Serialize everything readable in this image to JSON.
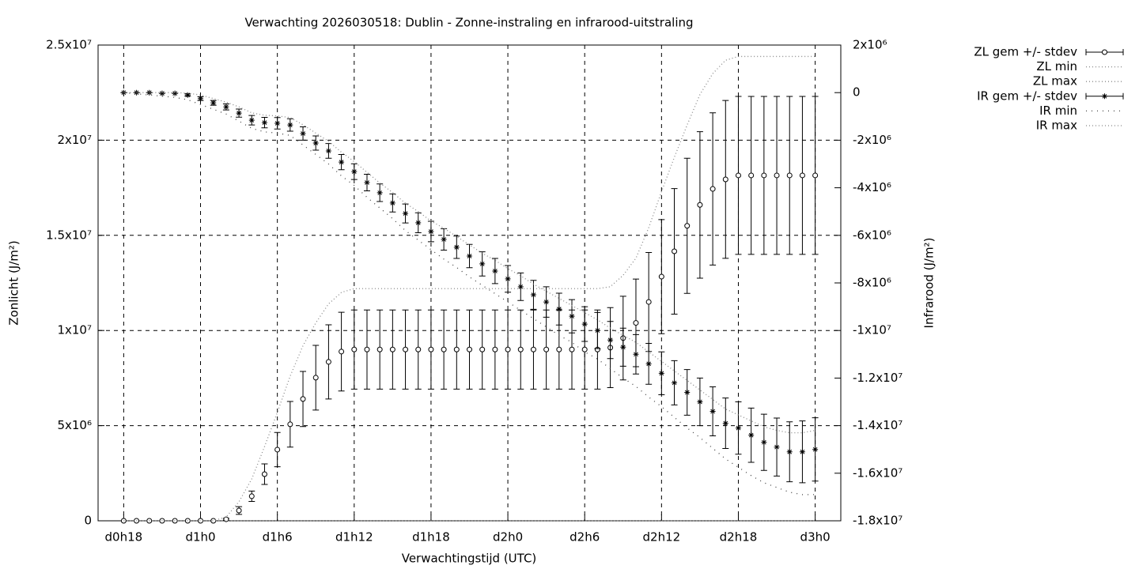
{
  "chart_data": {
    "type": "line",
    "title": "Verwachting 2026030518: Dublin - Zonne-instraling en infrarood-uitstraling",
    "xlabel": "Verwachtingstijd (UTC)",
    "ylabel": "Zonlicht (J/m²)",
    "y2label": "Infrarood (J/m²)",
    "grid": true,
    "legend": "outside-top-right",
    "xlim": [
      -2,
      56
    ],
    "xticks": [
      {
        "value": 0,
        "label": "d0h18"
      },
      {
        "value": 6,
        "label": "d1h0"
      },
      {
        "value": 12,
        "label": "d1h6"
      },
      {
        "value": 18,
        "label": "d1h12"
      },
      {
        "value": 24,
        "label": "d1h18"
      },
      {
        "value": 30,
        "label": "d2h0"
      },
      {
        "value": 36,
        "label": "d2h6"
      },
      {
        "value": 42,
        "label": "d2h12"
      },
      {
        "value": 48,
        "label": "d2h18"
      },
      {
        "value": 54,
        "label": "d3h0"
      }
    ],
    "ylim": [
      0,
      25000000.0
    ],
    "yticks": [
      0,
      {
        "value": 5000000.0,
        "label": "5x10⁶"
      },
      {
        "value": 10000000.0,
        "label": "1x10⁷"
      },
      {
        "value": 15000000.0,
        "label": "1.5x10⁷"
      },
      {
        "value": 20000000.0,
        "label": "2x10⁷"
      },
      {
        "value": 25000000.0,
        "label": "2.5x10⁷"
      }
    ],
    "y2lim": [
      -18000000.0,
      2000000.0
    ],
    "y2ticks": [
      {
        "value": 2000000.0,
        "label": "2x10⁶"
      },
      0,
      {
        "value": -2000000.0,
        "label": "-2x10⁶"
      },
      {
        "value": -4000000.0,
        "label": "-4x10⁶"
      },
      {
        "value": -6000000.0,
        "label": "-6x10⁶"
      },
      {
        "value": -8000000.0,
        "label": "-8x10⁶"
      },
      {
        "value": -10000000.0,
        "label": "-1x10⁷"
      },
      {
        "value": -12000000.0,
        "label": "-1.2x10⁷"
      },
      {
        "value": -14000000.0,
        "label": "-1.4x10⁷"
      },
      {
        "value": -16000000.0,
        "label": "-1.6x10⁷"
      },
      {
        "value": -18000000.0,
        "label": "-1.8x10⁷"
      }
    ],
    "x": [
      0,
      1,
      2,
      3,
      4,
      5,
      6,
      7,
      8,
      9,
      10,
      11,
      12,
      13,
      14,
      15,
      16,
      17,
      18,
      19,
      20,
      21,
      22,
      23,
      24,
      25,
      26,
      27,
      28,
      29,
      30,
      31,
      32,
      33,
      34,
      35,
      36,
      37,
      38,
      39,
      40,
      41,
      42,
      43,
      44,
      45,
      46,
      47,
      48,
      49,
      50,
      51,
      52,
      53,
      54
    ],
    "series": [
      {
        "name": "ZL gem +/- stdev",
        "axis": "y",
        "style": "errorbars",
        "marker": "circle",
        "color": "#000000",
        "values": [
          0,
          0,
          0,
          0,
          0,
          0,
          0,
          0,
          80000.0,
          540000.0,
          1290000.0,
          2450000.0,
          3740000.0,
          5070000.0,
          6400000.0,
          7520000.0,
          8350000.0,
          8890000.0,
          9000000.0,
          9000000.0,
          9000000.0,
          9000000.0,
          9000000.0,
          9000000.0,
          9000000.0,
          9000000.0,
          9000000.0,
          9000000.0,
          9000000.0,
          9000000.0,
          9000000.0,
          9000000.0,
          9000000.0,
          9000000.0,
          9000000.0,
          9000000.0,
          9000000.0,
          9000000.0,
          9100000.0,
          9600000.0,
          10400000.0,
          11500000.0,
          12830000.0,
          14160000.0,
          15500000.0,
          16600000.0,
          17440000.0,
          17940000.0,
          18150000.0,
          18150000.0,
          18150000.0,
          18150000.0,
          18150000.0,
          18150000.0,
          18150000.0
        ],
        "errors": [
          0,
          0,
          0,
          0,
          0,
          0,
          0,
          0,
          50000.0,
          200000.0,
          270000.0,
          540000.0,
          900000.0,
          1200000.0,
          1450000.0,
          1700000.0,
          1950000.0,
          2070000.0,
          2080000.0,
          2080000.0,
          2080000.0,
          2080000.0,
          2080000.0,
          2080000.0,
          2080000.0,
          2080000.0,
          2080000.0,
          2080000.0,
          2080000.0,
          2080000.0,
          2080000.0,
          2080000.0,
          2080000.0,
          2080000.0,
          2080000.0,
          2080000.0,
          2080000.0,
          2080000.0,
          2100000.0,
          2200000.0,
          2300000.0,
          2600000.0,
          3000000.0,
          3300000.0,
          3550000.0,
          3850000.0,
          4000000.0,
          4150000.0,
          4150000.0,
          4150000.0,
          4150000.0,
          4150000.0,
          4150000.0,
          4150000.0,
          4150000.0
        ]
      },
      {
        "name": "ZL min",
        "axis": "y",
        "style": "lines",
        "dash": "1,3",
        "color": "#888888",
        "values": [
          0,
          0,
          0,
          0,
          0,
          0,
          0,
          0,
          0,
          0,
          0,
          0,
          0,
          0,
          0,
          0,
          0,
          0,
          0,
          0,
          0,
          0,
          0,
          0,
          0,
          0,
          0,
          0,
          0,
          0,
          0,
          0,
          0,
          0,
          0,
          0,
          0,
          0,
          0,
          0,
          0,
          0,
          0,
          0,
          0,
          0,
          0,
          0,
          0,
          0,
          0,
          0,
          0,
          0,
          0
        ]
      },
      {
        "name": "ZL max",
        "axis": "y",
        "style": "lines",
        "dash": "1,3",
        "color": "#888888",
        "values": [
          0,
          0,
          0,
          0,
          0,
          0,
          0,
          0,
          200000.0,
          1000000.0,
          2200000.0,
          3900000.0,
          5700000.0,
          7600000.0,
          9200000.0,
          10400000.0,
          11400000.0,
          12000000.0,
          12200000.0,
          12200000.0,
          12200000.0,
          12200000.0,
          12200000.0,
          12200000.0,
          12200000.0,
          12200000.0,
          12200000.0,
          12200000.0,
          12200000.0,
          12200000.0,
          12200000.0,
          12200000.0,
          12200000.0,
          12200000.0,
          12200000.0,
          12200000.0,
          12200000.0,
          12200000.0,
          12300000.0,
          12900000.0,
          13800000.0,
          15400000.0,
          17300000.0,
          19100000.0,
          20800000.0,
          22400000.0,
          23500000.0,
          24200000.0,
          24400000.0,
          24400000.0,
          24400000.0,
          24400000.0,
          24400000.0,
          24400000.0,
          24400000.0
        ]
      },
      {
        "name": "IR gem +/- stdev",
        "axis": "y2",
        "style": "errorbars",
        "marker": "star",
        "color": "#000000",
        "values": [
          0,
          0,
          0,
          -30000.0,
          -30000.0,
          -100000.0,
          -250000.0,
          -430000.0,
          -600000.0,
          -860000.0,
          -1160000.0,
          -1260000.0,
          -1290000.0,
          -1360000.0,
          -1720000.0,
          -2120000.0,
          -2450000.0,
          -2920000.0,
          -3320000.0,
          -3780000.0,
          -4210000.0,
          -4640000.0,
          -5080000.0,
          -5470000.0,
          -5840000.0,
          -6170000.0,
          -6500000.0,
          -6870000.0,
          -7200000.0,
          -7500000.0,
          -7830000.0,
          -8160000.0,
          -8500000.0,
          -8800000.0,
          -9100000.0,
          -9400000.0,
          -9730000.0,
          -10000000.0,
          -10400000.0,
          -10700000.0,
          -11000000.0,
          -11400000.0,
          -11800000.0,
          -12200000.0,
          -12600000.0,
          -13000000.0,
          -13400000.0,
          -13900000.0,
          -14100000.0,
          -14400000.0,
          -14700000.0,
          -14900000.0,
          -15100000.0,
          -15100000.0,
          -15000000.0
        ],
        "errors": [
          0,
          0,
          0,
          0,
          0,
          50000.0,
          80000.0,
          100000.0,
          130000.0,
          170000.0,
          200000.0,
          220000.0,
          240000.0,
          260000.0,
          280000.0,
          300000.0,
          310000.0,
          320000.0,
          330000.0,
          350000.0,
          370000.0,
          380000.0,
          400000.0,
          420000.0,
          430000.0,
          450000.0,
          470000.0,
          490000.0,
          510000.0,
          530000.0,
          560000.0,
          580000.0,
          610000.0,
          640000.0,
          670000.0,
          700000.0,
          730000.0,
          760000.0,
          780000.0,
          800000.0,
          830000.0,
          860000.0,
          900000.0,
          930000.0,
          960000.0,
          1000000.0,
          1030000.0,
          1060000.0,
          1100000.0,
          1140000.0,
          1180000.0,
          1220000.0,
          1260000.0,
          1300000.0,
          1330000.0
        ]
      },
      {
        "name": "IR min",
        "axis": "y2",
        "style": "lines",
        "dash": "1,6",
        "color": "#444444",
        "values": [
          0,
          -50000.0,
          -100000.0,
          -150000.0,
          -200000.0,
          -300000.0,
          -500000.0,
          -700000.0,
          -900000.0,
          -1200000.0,
          -1500000.0,
          -1650000.0,
          -1700000.0,
          -1800000.0,
          -2200000.0,
          -2600000.0,
          -3000000.0,
          -3500000.0,
          -3900000.0,
          -4400000.0,
          -4850000.0,
          -5300000.0,
          -5800000.0,
          -6200000.0,
          -6600000.0,
          -7000000.0,
          -7350000.0,
          -7750000.0,
          -8100000.0,
          -8450000.0,
          -8800000.0,
          -9150000.0,
          -9500000.0,
          -9850000.0,
          -10200000.0,
          -10500000.0,
          -10900000.0,
          -11200000.0,
          -11600000.0,
          -12000000.0,
          -12350000.0,
          -12800000.0,
          -13200000.0,
          -13650000.0,
          -14100000.0,
          -14500000.0,
          -14950000.0,
          -15400000.0,
          -15750000.0,
          -16100000.0,
          -16400000.0,
          -16600000.0,
          -16800000.0,
          -16900000.0,
          -16900000.0
        ]
      },
      {
        "name": "IR max",
        "axis": "y2",
        "style": "lines",
        "dash": "1,3",
        "color": "#888888",
        "values": [
          0,
          0,
          0,
          0,
          0,
          -20000.0,
          -100000.0,
          -250000.0,
          -400000.0,
          -600000.0,
          -850000.0,
          -950000.0,
          -980000.0,
          -1050000.0,
          -1350000.0,
          -1700000.0,
          -2050000.0,
          -2500000.0,
          -2900000.0,
          -3350000.0,
          -3800000.0,
          -4200000.0,
          -4650000.0,
          -5000000.0,
          -5400000.0,
          -5700000.0,
          -6050000.0,
          -6400000.0,
          -6750000.0,
          -7050000.0,
          -7400000.0,
          -7700000.0,
          -8050000.0,
          -8350000.0,
          -8650000.0,
          -8950000.0,
          -9250000.0,
          -9550000.0,
          -9900000.0,
          -10200000.0,
          -10500000.0,
          -10900000.0,
          -11300000.0,
          -11700000.0,
          -12100000.0,
          -12500000.0,
          -12900000.0,
          -13300000.0,
          -13550000.0,
          -13800000.0,
          -14050000.0,
          -14200000.0,
          -14300000.0,
          -14300000.0,
          -14200000.0
        ]
      }
    ]
  }
}
